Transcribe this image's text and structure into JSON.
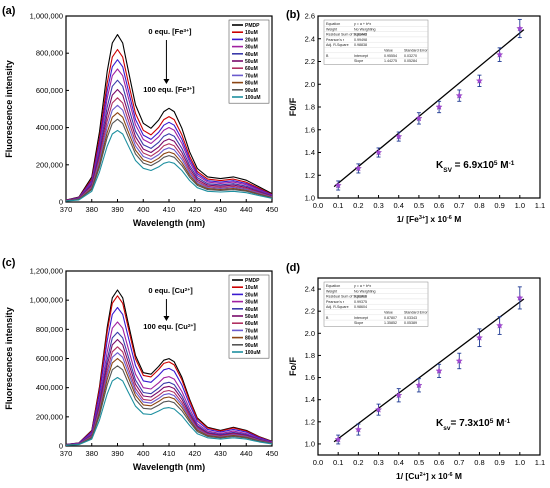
{
  "figure": {
    "panels": [
      {
        "id": "a",
        "label": "(a)"
      },
      {
        "id": "b",
        "label": "(b)"
      },
      {
        "id": "c",
        "label": "(c)"
      },
      {
        "id": "d",
        "label": "(d)"
      }
    ]
  },
  "chart_data": [
    {
      "id": "a",
      "type": "line",
      "xlabel": "Wavelength (nm)",
      "ylabel": "Fluorescence intensity",
      "xlim": [
        370,
        450
      ],
      "ylim": [
        0,
        1000000
      ],
      "xticks": [
        370,
        380,
        390,
        400,
        410,
        420,
        430,
        440,
        450
      ],
      "yticks": [
        0,
        200000,
        400000,
        600000,
        800000,
        1000000
      ],
      "ytick_labels": [
        "0",
        "200,000",
        "400,000",
        "600,000",
        "800,000",
        "1,000,000"
      ],
      "x": [
        370,
        375,
        380,
        383,
        386,
        388,
        390,
        392,
        394,
        397,
        400,
        403,
        406,
        408,
        410,
        412,
        415,
        418,
        421,
        425,
        430,
        435,
        440,
        445,
        450
      ],
      "profile": [
        0.012,
        0.03,
        0.15,
        0.42,
        0.78,
        0.95,
        1.0,
        0.95,
        0.8,
        0.58,
        0.47,
        0.44,
        0.49,
        0.54,
        0.56,
        0.54,
        0.44,
        0.3,
        0.2,
        0.15,
        0.14,
        0.15,
        0.13,
        0.09,
        0.05
      ],
      "series": [
        {
          "name": "PMDP",
          "peak": 900000,
          "color": "#000000"
        },
        {
          "name": "10uM",
          "peak": 820000,
          "color": "#cc0000"
        },
        {
          "name": "20uM",
          "peak": 765000,
          "color": "#3a1ad0"
        },
        {
          "name": "30uM",
          "peak": 715000,
          "color": "#a020a0"
        },
        {
          "name": "40uM",
          "peak": 655000,
          "color": "#3a3aaa"
        },
        {
          "name": "50uM",
          "peak": 605000,
          "color": "#7a0a6a"
        },
        {
          "name": "60uM",
          "peak": 560000,
          "color": "#b03060"
        },
        {
          "name": "70uM",
          "peak": 520000,
          "color": "#6a5acd"
        },
        {
          "name": "80uM",
          "peak": 480000,
          "color": "#8b4513"
        },
        {
          "name": "90uM",
          "peak": 445000,
          "color": "#555555"
        },
        {
          "name": "100uM",
          "peak": 385000,
          "color": "#1e90a0"
        }
      ],
      "annotations": [
        {
          "text": "0 equ. [Fe",
          "sup": "3+",
          "tail": "]"
        },
        {
          "text": "100 equ. [Fe",
          "sup": "3+",
          "tail": "]"
        }
      ]
    },
    {
      "id": "b",
      "type": "scatter",
      "xlabel": "1/ [Fe",
      "xlabel_sup": "3+",
      "xlabel_tail": "] x 10",
      "xlabel_sup2": "-6",
      "xlabel_tail2": " M",
      "ylabel": "F0/F",
      "xlim": [
        0.0,
        1.1
      ],
      "ylim": [
        1.0,
        2.6
      ],
      "xticks": [
        0.0,
        0.1,
        0.2,
        0.3,
        0.4,
        0.5,
        0.6,
        0.7,
        0.8,
        0.9,
        1.0,
        1.1
      ],
      "yticks": [
        1.0,
        1.2,
        1.4,
        1.6,
        1.8,
        2.0,
        2.2,
        2.4,
        2.6
      ],
      "x": [
        0.1,
        0.2,
        0.3,
        0.4,
        0.5,
        0.6,
        0.7,
        0.8,
        0.9,
        1.0
      ],
      "y": [
        1.11,
        1.26,
        1.4,
        1.54,
        1.7,
        1.8,
        1.9,
        2.03,
        2.26,
        2.49
      ],
      "err": [
        0.04,
        0.04,
        0.04,
        0.04,
        0.05,
        0.05,
        0.05,
        0.05,
        0.06,
        0.08
      ],
      "fit": {
        "x": [
          0.08,
          1.02
        ],
        "y": [
          1.1,
          2.48
        ]
      },
      "annotation": {
        "text": "K",
        "sub": "SV",
        "mid": " = 6.9x10",
        "sup": "5",
        "tail": "  M",
        "sup2": "-1"
      },
      "table": {
        "rows": [
          [
            "Equation",
            "y = a + b*x",
            "",
            ""
          ],
          [
            "Weight",
            "No Weighting",
            "",
            ""
          ],
          [
            "Residual Sum of Squares",
            "0.01443",
            "",
            ""
          ],
          [
            "Pearson's r",
            "0.99498",
            "",
            ""
          ],
          [
            "Adj. R-Square",
            "0.98838",
            "",
            ""
          ],
          [
            "",
            "",
            "Value",
            "Standard Error"
          ],
          [
            "B",
            "Intercept",
            "0.95554",
            "0.03270"
          ],
          [
            "",
            "Slope",
            "1.44275",
            "0.05284"
          ]
        ]
      }
    },
    {
      "id": "c",
      "type": "line",
      "xlabel": "Wavelength (nm)",
      "ylabel": "Fluorescences intensity",
      "xlim": [
        370,
        450
      ],
      "ylim": [
        0,
        1200000
      ],
      "xticks": [
        370,
        380,
        390,
        400,
        410,
        420,
        430,
        440,
        450
      ],
      "yticks": [
        0,
        200000,
        400000,
        600000,
        800000,
        1000000,
        1200000
      ],
      "ytick_labels": [
        "0",
        "200,000",
        "400,000",
        "600,000",
        "800,000",
        "1,000,000",
        "1,200,000"
      ],
      "x": [
        370,
        375,
        380,
        383,
        386,
        388,
        390,
        392,
        394,
        397,
        400,
        403,
        406,
        408,
        410,
        412,
        415,
        418,
        421,
        425,
        430,
        435,
        440,
        445,
        450
      ],
      "profile": [
        0.01,
        0.02,
        0.1,
        0.38,
        0.76,
        0.95,
        1.0,
        0.95,
        0.8,
        0.58,
        0.47,
        0.46,
        0.51,
        0.55,
        0.56,
        0.54,
        0.44,
        0.3,
        0.18,
        0.12,
        0.1,
        0.12,
        0.1,
        0.06,
        0.03
      ],
      "series": [
        {
          "name": "PMDP",
          "peak": 1070000,
          "color": "#000000"
        },
        {
          "name": "10uM",
          "peak": 1030000,
          "color": "#cc0000"
        },
        {
          "name": "20uM",
          "peak": 950000,
          "color": "#3a1ad0"
        },
        {
          "name": "30uM",
          "peak": 850000,
          "color": "#a020a0"
        },
        {
          "name": "40uM",
          "peak": 780000,
          "color": "#3a3aaa"
        },
        {
          "name": "50uM",
          "peak": 730000,
          "color": "#7a0a6a"
        },
        {
          "name": "60uM",
          "peak": 680000,
          "color": "#b03060"
        },
        {
          "name": "70uM",
          "peak": 640000,
          "color": "#6a5acd"
        },
        {
          "name": "80uM",
          "peak": 600000,
          "color": "#8b4513"
        },
        {
          "name": "90uM",
          "peak": 550000,
          "color": "#555555"
        },
        {
          "name": "100uM",
          "peak": 470000,
          "color": "#1e90a0"
        }
      ],
      "annotations": [
        {
          "text": "0 equ. [Cu",
          "sup": "2+",
          "tail": "]"
        },
        {
          "text": "100 equ. [Cu",
          "sup": "2+",
          "tail": "]"
        }
      ]
    },
    {
      "id": "d",
      "type": "scatter",
      "xlabel": "1/ [Cu",
      "xlabel_sup": "2+",
      "xlabel_tail": "] x 10",
      "xlabel_sup2": "-6",
      "xlabel_tail2": " M",
      "ylabel": "Fo/F",
      "xlim": [
        0.0,
        1.1
      ],
      "ylim": [
        0.9,
        2.5
      ],
      "xticks": [
        0.0,
        0.1,
        0.2,
        0.3,
        0.4,
        0.5,
        0.6,
        0.7,
        0.8,
        0.9,
        1.0,
        1.1
      ],
      "yticks": [
        1.0,
        1.2,
        1.4,
        1.6,
        1.8,
        2.0,
        2.2,
        2.4
      ],
      "x": [
        0.1,
        0.2,
        0.3,
        0.4,
        0.5,
        0.6,
        0.7,
        0.8,
        0.9,
        1.0
      ],
      "y": [
        1.04,
        1.13,
        1.31,
        1.44,
        1.53,
        1.66,
        1.75,
        1.96,
        2.07,
        2.32
      ],
      "err": [
        0.04,
        0.05,
        0.05,
        0.06,
        0.06,
        0.06,
        0.07,
        0.08,
        0.08,
        0.1
      ],
      "fit": {
        "x": [
          0.08,
          1.02
        ],
        "y": [
          1.02,
          2.31
        ]
      },
      "annotation": {
        "text": "K",
        "sub": "sv",
        "mid": "= 7.3x10",
        "sup": "5",
        "tail": " M",
        "sup2": "-1"
      },
      "table": {
        "rows": [
          [
            "Equation",
            "y = a + b*x",
            "",
            ""
          ],
          [
            "Weight",
            "No Weighting",
            "",
            ""
          ],
          [
            "Residual Sum of Squares",
            "0.01916",
            "",
            ""
          ],
          [
            "Pearson's r",
            "0.99375",
            "",
            ""
          ],
          [
            "Adj. R-Square",
            "0.98604",
            "",
            ""
          ],
          [
            "",
            "",
            "Value",
            "Standard Error"
          ],
          [
            "B",
            "Intercept",
            "0.87807",
            "0.03343"
          ],
          [
            "",
            "Slope",
            "1.35852",
            "0.05389"
          ]
        ]
      }
    }
  ]
}
